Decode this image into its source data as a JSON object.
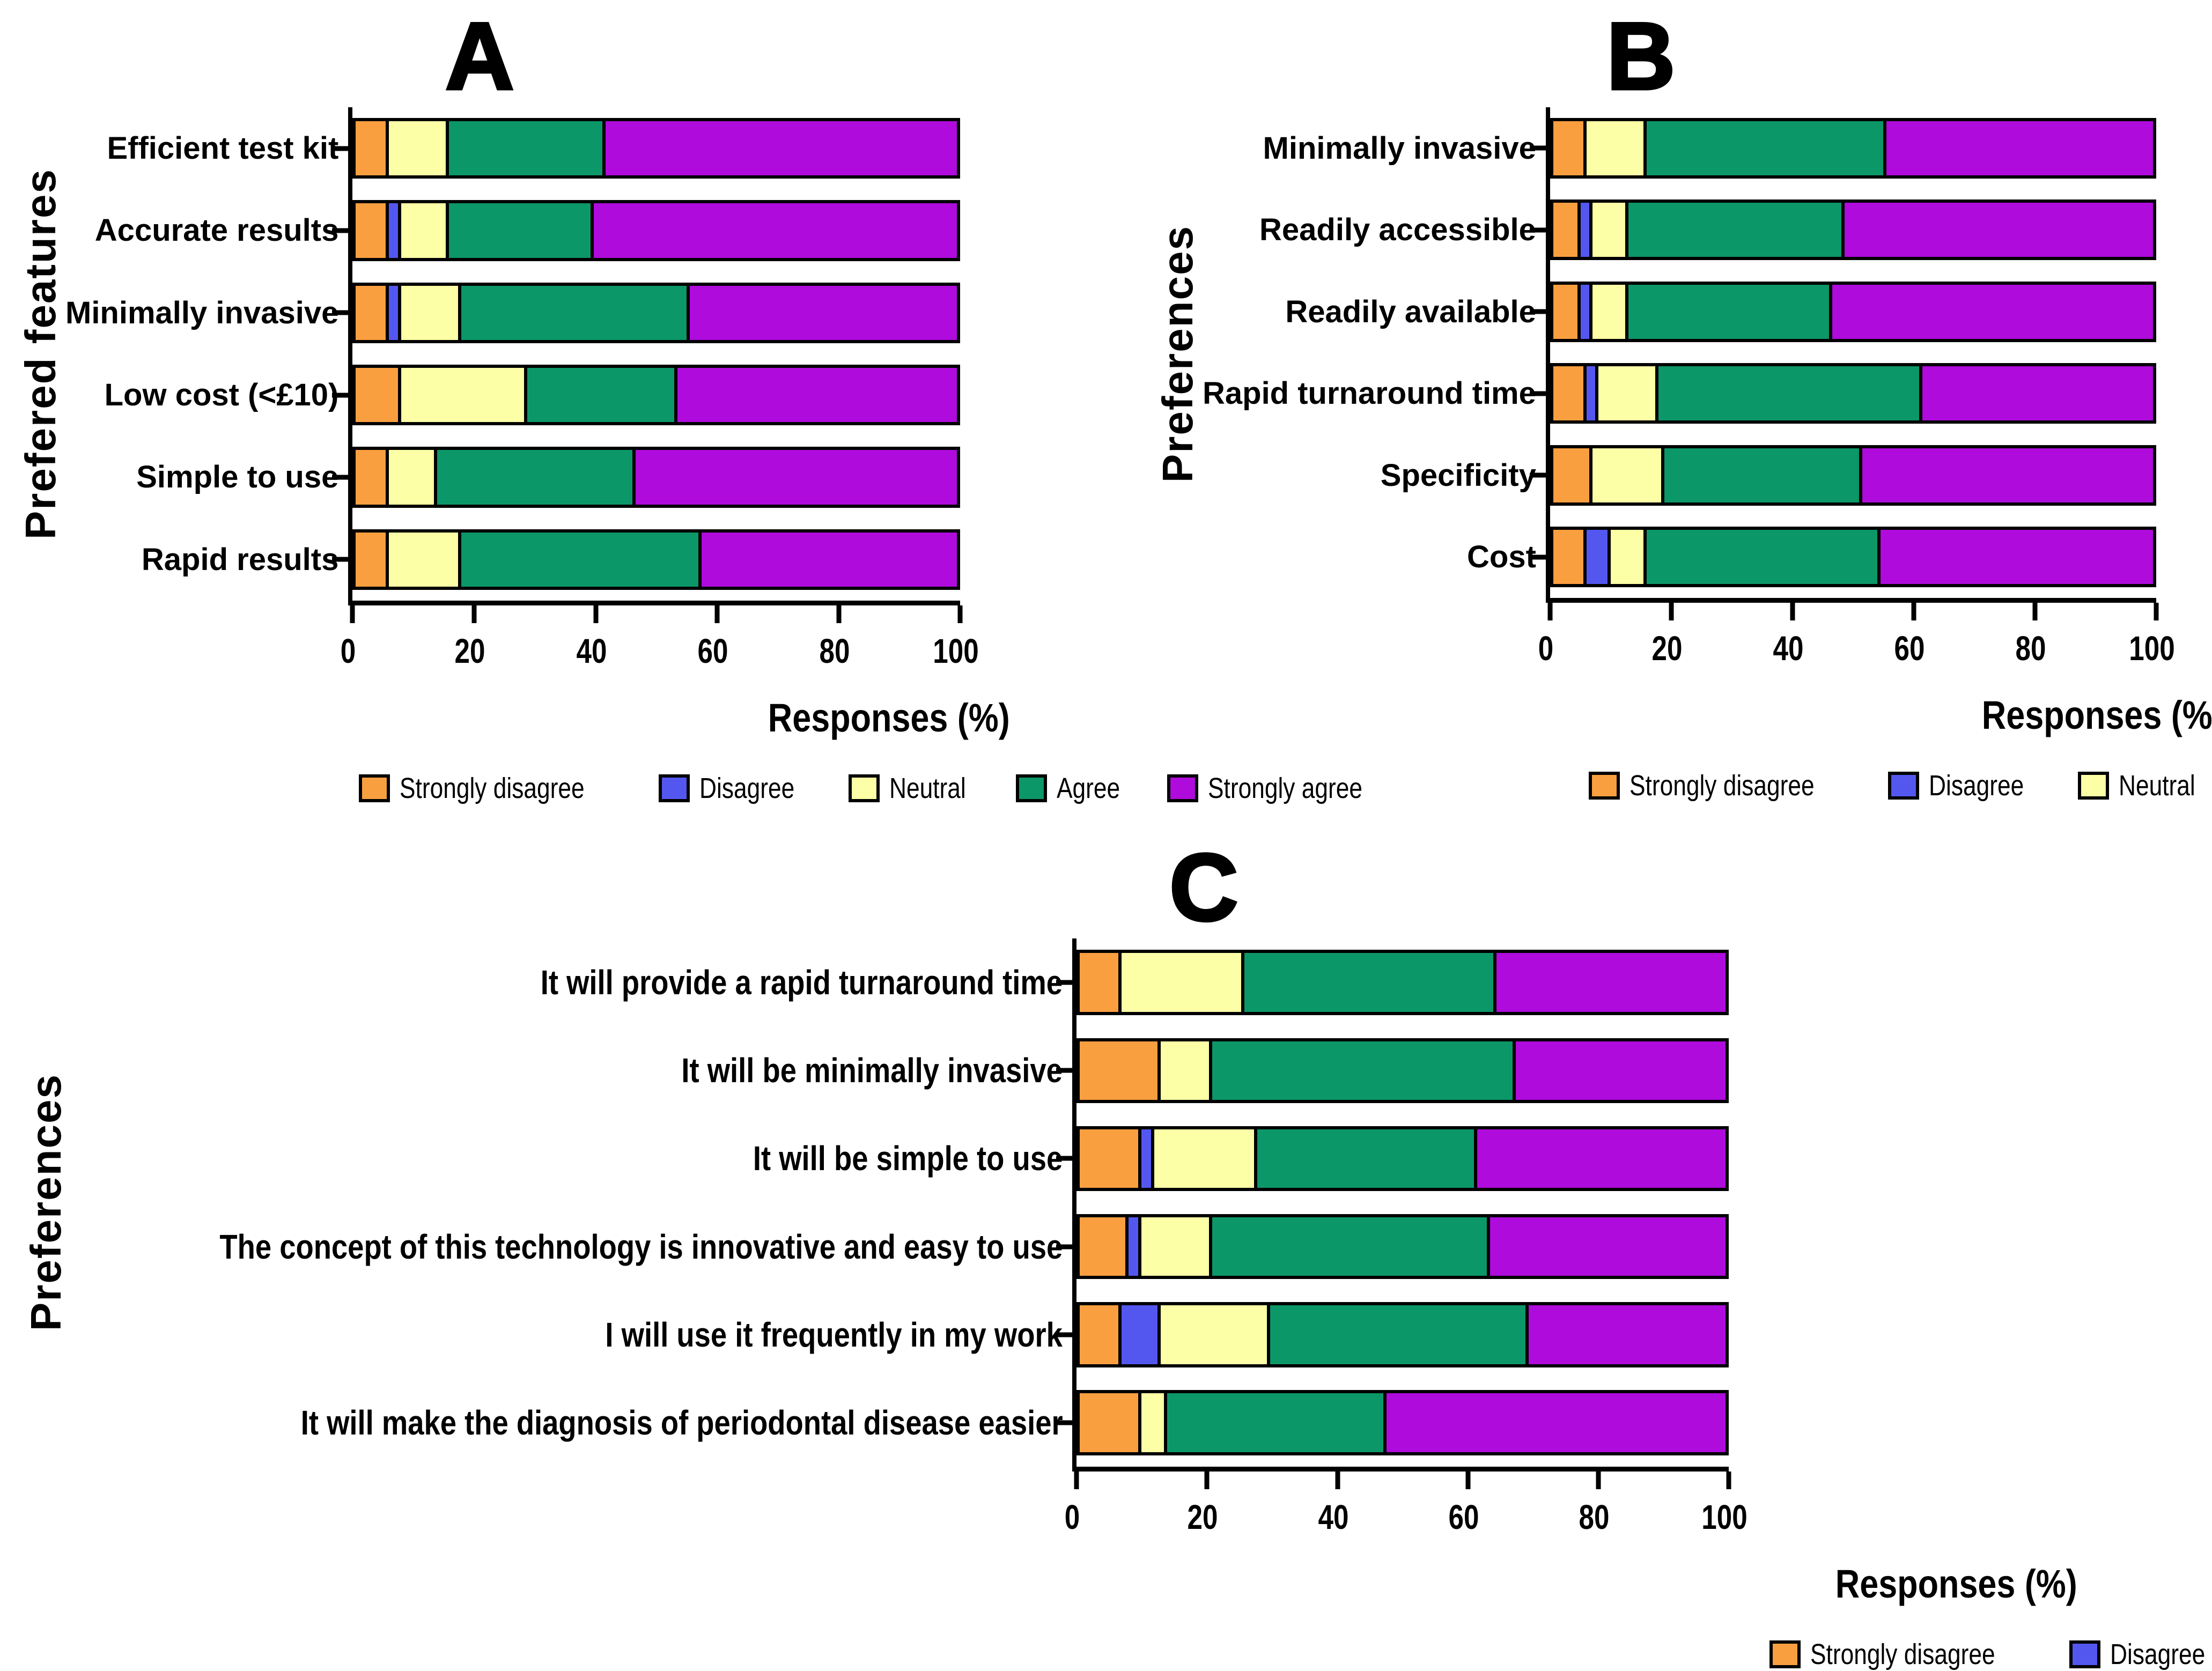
{
  "figure": {
    "xlabel": "Responses (%)",
    "legend_labels": [
      "Strongly disagree",
      "Disagree",
      "Neutral",
      "Agree",
      "Strongly agree"
    ],
    "colors": {
      "strongly_disagree": "#FA9F40",
      "disagree": "#5457EF",
      "neutral": "#FDFFA6",
      "agree": "#0C9768",
      "strongly_agree": "#AE0BDC"
    }
  },
  "chart_data": [
    {
      "type": "bar",
      "orientation": "horizontal",
      "stacked": true,
      "panel_label": "A",
      "ylabel": "Prefered features",
      "xlabel": "Responses (%)",
      "xlim": [
        0,
        100
      ],
      "x_ticks": [
        0,
        20,
        40,
        60,
        80,
        100
      ],
      "legend_position": "bottom",
      "categories": [
        "Efficient test kit",
        "Accurate results",
        "Minimally invasive",
        "Low cost (<£10)",
        "Simple to use",
        "Rapid results"
      ],
      "series": [
        {
          "name": "Strongly disagree",
          "color": "#FA9F40",
          "values": [
            5,
            5,
            5,
            7,
            5,
            5
          ]
        },
        {
          "name": "Disagree",
          "color": "#5457EF",
          "values": [
            0,
            2,
            2,
            0,
            0,
            0
          ]
        },
        {
          "name": "Neutral",
          "color": "#FDFFA6",
          "values": [
            10,
            8,
            10,
            21,
            8,
            12
          ]
        },
        {
          "name": "Agree",
          "color": "#0C9768",
          "values": [
            26,
            24,
            38,
            25,
            33,
            40
          ]
        },
        {
          "name": "Strongly agree",
          "color": "#AE0BDC",
          "values": [
            59,
            61,
            45,
            47,
            54,
            43
          ]
        }
      ]
    },
    {
      "type": "bar",
      "orientation": "horizontal",
      "stacked": true,
      "panel_label": "B",
      "ylabel": "Preferences",
      "xlabel": "Responses (%)",
      "xlim": [
        0,
        100
      ],
      "x_ticks": [
        0,
        20,
        40,
        60,
        80,
        100
      ],
      "legend_position": "bottom",
      "categories": [
        "Minimally invasive",
        "Readily accessible",
        "Readily available",
        "Rapid turnaround time",
        "Specificity",
        "Cost"
      ],
      "series": [
        {
          "name": "Strongly disagree",
          "color": "#FA9F40",
          "values": [
            5,
            4,
            4,
            5,
            6,
            5
          ]
        },
        {
          "name": "Disagree",
          "color": "#5457EF",
          "values": [
            0,
            2,
            2,
            2,
            0,
            4
          ]
        },
        {
          "name": "Neutral",
          "color": "#FDFFA6",
          "values": [
            10,
            6,
            6,
            10,
            12,
            6
          ]
        },
        {
          "name": "Agree",
          "color": "#0C9768",
          "values": [
            40,
            36,
            34,
            44,
            33,
            39
          ]
        },
        {
          "name": "Strongly agree",
          "color": "#AE0BDC",
          "values": [
            45,
            52,
            54,
            39,
            49,
            46
          ]
        }
      ]
    },
    {
      "type": "bar",
      "orientation": "horizontal",
      "stacked": true,
      "panel_label": "C",
      "ylabel": "Preferences",
      "xlabel": "Responses (%)",
      "xlim": [
        0,
        100
      ],
      "x_ticks": [
        0,
        20,
        40,
        60,
        80,
        100
      ],
      "legend_position": "bottom",
      "categories": [
        "It will provide a rapid turnaround time",
        "It will be minimally invasive",
        "It will be simple to use",
        "The concept of this technology is innovative and easy to use",
        "I will use it frequently in my work",
        "It will make the diagnosis of periodontal disease easier"
      ],
      "series": [
        {
          "name": "Strongly disagree",
          "color": "#FA9F40",
          "values": [
            6,
            12,
            9,
            7,
            6,
            9
          ]
        },
        {
          "name": "Disagree",
          "color": "#5457EF",
          "values": [
            0,
            0,
            2,
            2,
            6,
            0
          ]
        },
        {
          "name": "Neutral",
          "color": "#FDFFA6",
          "values": [
            19,
            8,
            16,
            11,
            17,
            4
          ]
        },
        {
          "name": "Agree",
          "color": "#0C9768",
          "values": [
            39,
            47,
            34,
            43,
            40,
            34
          ]
        },
        {
          "name": "Strongly agree",
          "color": "#AE0BDC",
          "values": [
            36,
            33,
            39,
            37,
            31,
            53
          ]
        }
      ]
    }
  ]
}
